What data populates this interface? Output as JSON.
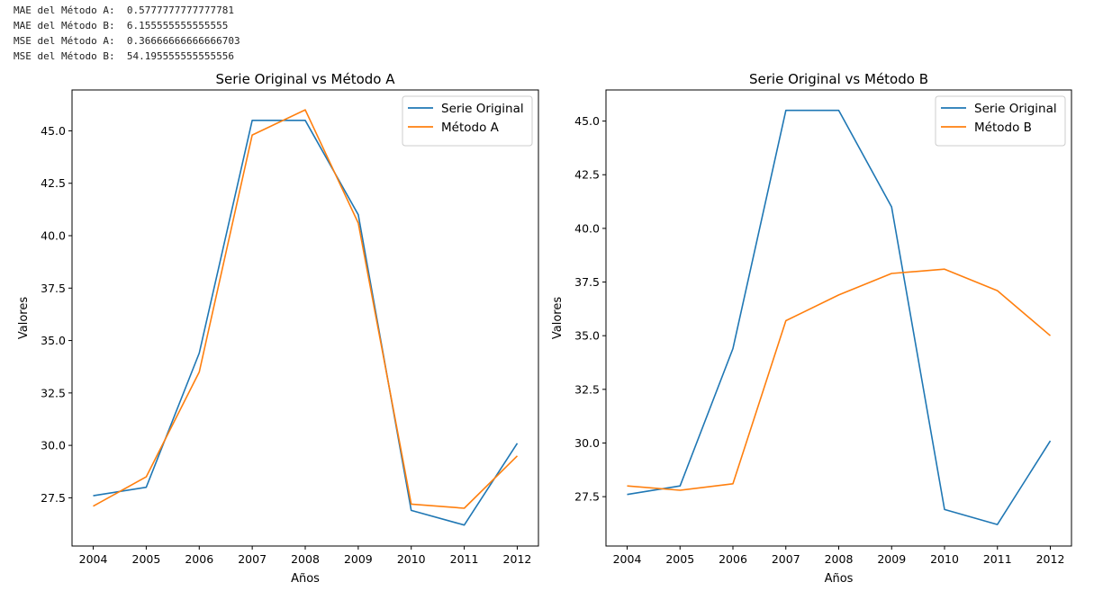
{
  "console": {
    "lines": [
      "MAE del Método A:  0.5777777777777781",
      "MAE del Método B:  6.155555555555555",
      "MSE del Método A:  0.36666666666666703",
      "MSE del Método B:  54.195555555555556"
    ]
  },
  "chart_data": [
    {
      "type": "line",
      "title": "Serie Original vs Método A",
      "xlabel": "Años",
      "ylabel": "Valores",
      "x": [
        2004,
        2005,
        2006,
        2007,
        2008,
        2009,
        2010,
        2011,
        2012
      ],
      "xticks": [
        "2004",
        "2005",
        "2006",
        "2007",
        "2008",
        "2009",
        "2010",
        "2011",
        "2012"
      ],
      "yticks": [
        "27.5",
        "30.0",
        "32.5",
        "35.0",
        "37.5",
        "40.0",
        "42.5",
        "45.0"
      ],
      "ytick_values": [
        27.5,
        30.0,
        32.5,
        35.0,
        37.5,
        40.0,
        42.5,
        45.0
      ],
      "xlim": [
        2003.6,
        2012.4
      ],
      "ylim": [
        25.2,
        46.95
      ],
      "legend_position": "top-right",
      "series": [
        {
          "name": "Serie Original",
          "color": "#1f77b4",
          "values": [
            27.6,
            28.0,
            34.4,
            45.5,
            45.5,
            41.0,
            26.9,
            26.2,
            30.1
          ]
        },
        {
          "name": "Método A",
          "color": "#ff7f0e",
          "values": [
            27.1,
            28.5,
            33.5,
            44.8,
            46.0,
            40.6,
            27.2,
            27.0,
            29.5
          ]
        }
      ]
    },
    {
      "type": "line",
      "title": "Serie Original vs Método B",
      "xlabel": "Años",
      "ylabel": "Valores",
      "x": [
        2004,
        2005,
        2006,
        2007,
        2008,
        2009,
        2010,
        2011,
        2012
      ],
      "xticks": [
        "2004",
        "2005",
        "2006",
        "2007",
        "2008",
        "2009",
        "2010",
        "2011",
        "2012"
      ],
      "yticks": [
        "27.5",
        "30.0",
        "32.5",
        "35.0",
        "37.5",
        "40.0",
        "42.5",
        "45.0"
      ],
      "ytick_values": [
        27.5,
        30.0,
        32.5,
        35.0,
        37.5,
        40.0,
        42.5,
        45.0
      ],
      "xlim": [
        2003.6,
        2012.4
      ],
      "ylim": [
        25.2,
        46.45
      ],
      "legend_position": "top-right",
      "series": [
        {
          "name": "Serie Original",
          "color": "#1f77b4",
          "values": [
            27.6,
            28.0,
            34.4,
            45.5,
            45.5,
            41.0,
            26.9,
            26.2,
            30.1
          ]
        },
        {
          "name": "Método B",
          "color": "#ff7f0e",
          "values": [
            28.0,
            27.8,
            28.1,
            35.7,
            36.9,
            37.9,
            38.1,
            37.1,
            35.0
          ]
        }
      ]
    }
  ]
}
